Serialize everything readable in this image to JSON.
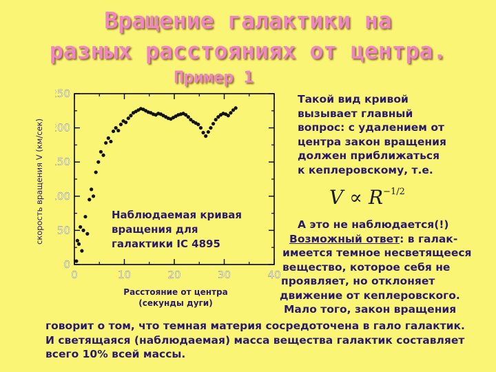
{
  "slide": {
    "title_line1": "Вращение галактики на",
    "title_line2": "разных расстояниях от центра.",
    "subtitle": "Пример 1",
    "y_axis_label": "скорость вращения V (км/сек)",
    "x_axis_label_line1": "Расстояние от центра",
    "x_axis_label_line2": "(секунды дуги)",
    "caption_line1": "Наблюдаемая кривая",
    "caption_line2": "вращения для",
    "caption_line3": "галактики IC 4895",
    "right_text_lines": [
      "Такой вид кривой",
      "вызывает главный",
      "вопрос: с удалением от",
      "центра закон вращения",
      "должен приближаться",
      "к кеплеровскому, т.е."
    ],
    "formula": {
      "lhs": "V",
      "op": "∝",
      "rhs": "R",
      "exponent": "−1/2"
    },
    "answer_intro": "А это не наблюдается(!)",
    "answer_label": "Возможный ответ",
    "answer_rest": ": в галак-",
    "answer_lines": [
      "имеется темное несветящееся",
      "вещество, которое себя не",
      "проявляет, но отклоняет",
      "движение от кеплеровского.",
      "Мало того, закон вращения"
    ],
    "bottom_lines": [
      "говорит о том, что темная материя сосредоточена в гало галактик.",
      "И светящаяся (наблюдаемая) масса вещества галактик составляет",
      "всего 10% всей массы."
    ]
  },
  "chart_data": {
    "type": "scatter",
    "xlim": [
      0,
      40
    ],
    "ylim": [
      0,
      250
    ],
    "x_ticks": [
      0,
      10,
      20,
      30,
      40
    ],
    "y_ticks": [
      0,
      50,
      100,
      150,
      200,
      250
    ],
    "x_tick_labels": [
      "0",
      "10",
      "20",
      "30",
      "40"
    ],
    "y_tick_labels": [
      "0",
      "50",
      "100",
      "150",
      "200",
      "250"
    ],
    "grid": false,
    "points": [
      {
        "x": 0.4,
        "y": 5
      },
      {
        "x": 0.6,
        "y": 35
      },
      {
        "x": 0.9,
        "y": 30
      },
      {
        "x": 1.2,
        "y": 55
      },
      {
        "x": 1.5,
        "y": 20
      },
      {
        "x": 1.8,
        "y": 50
      },
      {
        "x": 2.2,
        "y": 70
      },
      {
        "x": 2.6,
        "y": 45
      },
      {
        "x": 3.0,
        "y": 95
      },
      {
        "x": 3.4,
        "y": 110
      },
      {
        "x": 3.8,
        "y": 100
      },
      {
        "x": 4.3,
        "y": 135
      },
      {
        "x": 4.8,
        "y": 150
      },
      {
        "x": 5.3,
        "y": 165
      },
      {
        "x": 5.8,
        "y": 160
      },
      {
        "x": 6.3,
        "y": 178
      },
      {
        "x": 6.8,
        "y": 185
      },
      {
        "x": 7.3,
        "y": 180
      },
      {
        "x": 7.8,
        "y": 195
      },
      {
        "x": 8.3,
        "y": 200
      },
      {
        "x": 8.8,
        "y": 196
      },
      {
        "x": 9.3,
        "y": 205
      },
      {
        "x": 9.8,
        "y": 210
      },
      {
        "x": 10.3,
        "y": 208
      },
      {
        "x": 10.8,
        "y": 214
      },
      {
        "x": 11.3,
        "y": 218
      },
      {
        "x": 11.8,
        "y": 222
      },
      {
        "x": 12.3,
        "y": 224
      },
      {
        "x": 12.8,
        "y": 226
      },
      {
        "x": 13.3,
        "y": 228
      },
      {
        "x": 13.8,
        "y": 227
      },
      {
        "x": 14.3,
        "y": 225
      },
      {
        "x": 14.8,
        "y": 223
      },
      {
        "x": 15.3,
        "y": 222
      },
      {
        "x": 15.8,
        "y": 220
      },
      {
        "x": 16.3,
        "y": 219
      },
      {
        "x": 16.8,
        "y": 221
      },
      {
        "x": 17.3,
        "y": 220
      },
      {
        "x": 17.8,
        "y": 218
      },
      {
        "x": 18.3,
        "y": 216
      },
      {
        "x": 18.8,
        "y": 214
      },
      {
        "x": 19.3,
        "y": 213
      },
      {
        "x": 19.8,
        "y": 215
      },
      {
        "x": 20.3,
        "y": 217
      },
      {
        "x": 20.8,
        "y": 219
      },
      {
        "x": 21.3,
        "y": 220
      },
      {
        "x": 21.8,
        "y": 221
      },
      {
        "x": 22.3,
        "y": 219
      },
      {
        "x": 22.8,
        "y": 216
      },
      {
        "x": 23.3,
        "y": 212
      },
      {
        "x": 23.8,
        "y": 209
      },
      {
        "x": 24.3,
        "y": 207
      },
      {
        "x": 24.8,
        "y": 205
      },
      {
        "x": 25.3,
        "y": 200
      },
      {
        "x": 25.8,
        "y": 193
      },
      {
        "x": 26.3,
        "y": 188
      },
      {
        "x": 26.8,
        "y": 194
      },
      {
        "x": 27.3,
        "y": 200
      },
      {
        "x": 27.8,
        "y": 206
      },
      {
        "x": 28.3,
        "y": 212
      },
      {
        "x": 28.8,
        "y": 216
      },
      {
        "x": 29.3,
        "y": 219
      },
      {
        "x": 29.8,
        "y": 221
      },
      {
        "x": 30.3,
        "y": 220
      },
      {
        "x": 30.8,
        "y": 218
      },
      {
        "x": 31.3,
        "y": 222
      },
      {
        "x": 31.8,
        "y": 226
      },
      {
        "x": 32.3,
        "y": 229
      }
    ]
  }
}
